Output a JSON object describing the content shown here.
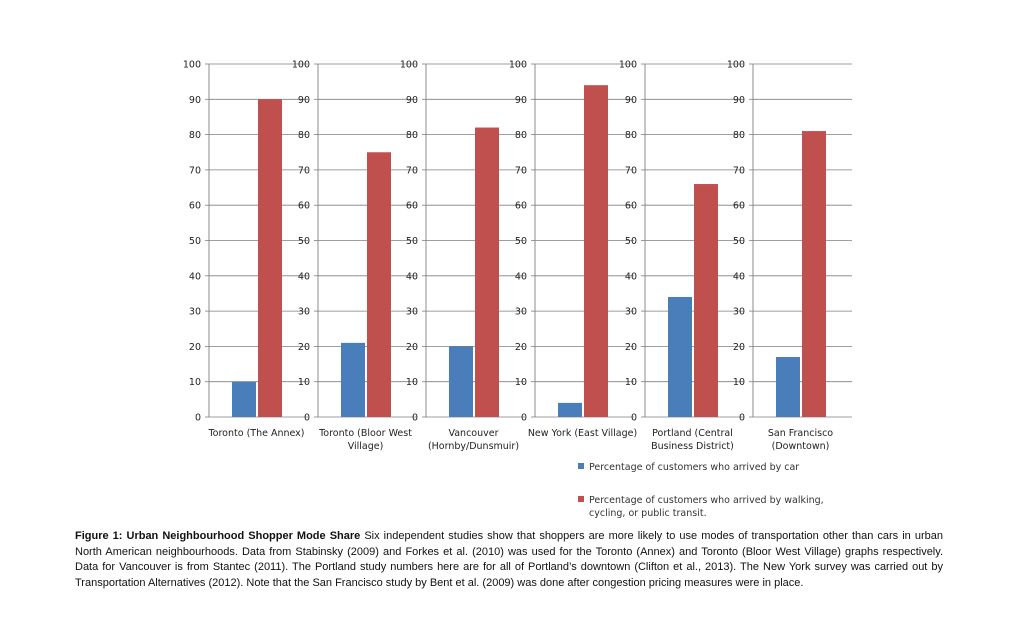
{
  "chart_data": {
    "type": "bar",
    "ylim": [
      0,
      100
    ],
    "yticks": [
      0,
      10,
      20,
      30,
      40,
      50,
      60,
      70,
      80,
      90,
      100
    ],
    "grid": true,
    "colors": {
      "car": "#4a7ebb",
      "active": "#c0504d"
    },
    "panels": [
      {
        "label_lines": [
          "Toronto (The Annex)"
        ],
        "car": 10,
        "active": 90
      },
      {
        "label_lines": [
          "Toronto (Bloor West",
          "Village)"
        ],
        "car": 21,
        "active": 75
      },
      {
        "label_lines": [
          "Vancouver",
          "(Hornby/Dunsmuir)"
        ],
        "car": 20,
        "active": 82
      },
      {
        "label_lines": [
          "New York (East Village)"
        ],
        "car": 4,
        "active": 94
      },
      {
        "label_lines": [
          "Portland (Central",
          "Business District)"
        ],
        "car": 34,
        "active": 66
      },
      {
        "label_lines": [
          "San Francisco",
          "(Downtown)"
        ],
        "car": 17,
        "active": 81
      }
    ],
    "legend": {
      "car_label": "Percentage of customers who arrived by car",
      "active_label_line1": "Percentage of customers who arrived by walking,",
      "active_label_line2": "cycling, or public transit."
    }
  },
  "caption": {
    "bold": "Figure 1: Urban Neighbourhood Shopper Mode Share",
    "text": " Six independent studies show that shoppers are more likely to use modes of transportation other than cars in urban North American neighbourhoods.  Data from Stabinsky (2009) and Forkes et al. (2010) was used for the Toronto (Annex) and Toronto (Bloor West Village) graphs respectively. Data for Vancouver is from Stantec (2011).  The Portland study numbers here are for all of Portland’s downtown (Clifton et al., 2013). The New York survey was carried out by Transportation Alternatives (2012). Note that the San Francisco study by Bent et al. (2009) was done after congestion pricing measures were in place."
  }
}
